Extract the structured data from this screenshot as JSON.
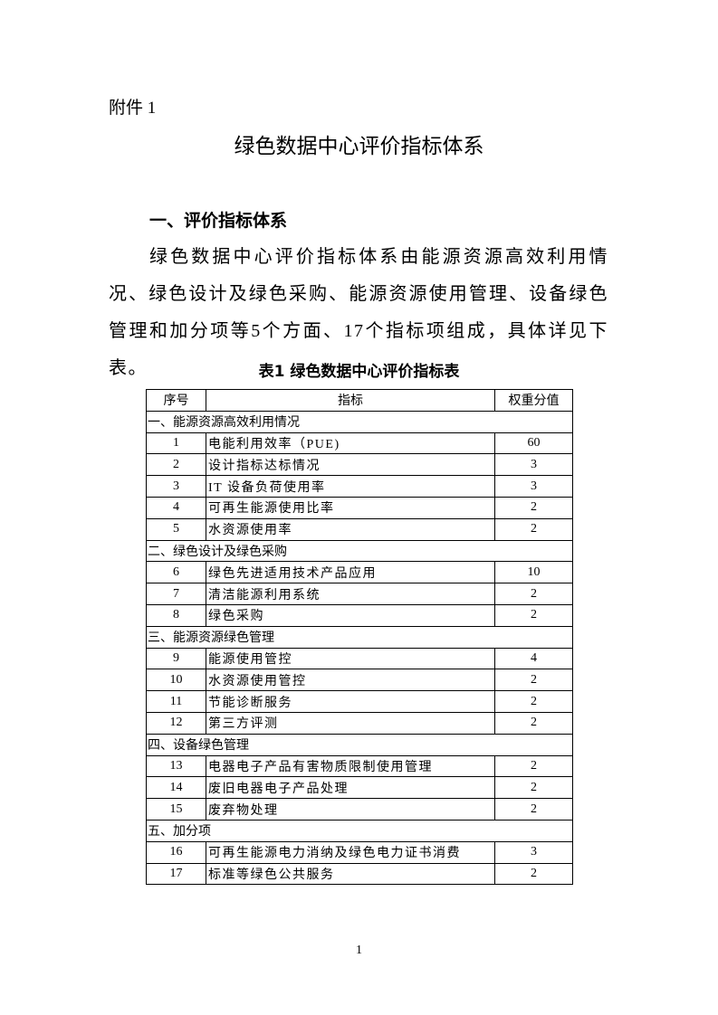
{
  "attachment_label": "附件 1",
  "title": "绿色数据中心评价指标体系",
  "section_heading": "一、评价指标体系",
  "paragraph": "绿色数据中心评价指标体系由能源资源高效利用情况、绿色设计及绿色采购、能源资源使用管理、设备绿色管理和加分项等5个方面、17个指标项组成，具体详见下表。",
  "table_caption": "表1  绿色数据中心评价指标表",
  "table": {
    "headers": [
      "序号",
      "指标",
      "权重分值"
    ],
    "sections": [
      {
        "name": "一、能源资源高效利用情况",
        "rows": [
          {
            "no": "1",
            "item": "电能利用效率（PUE)",
            "weight": "60"
          },
          {
            "no": "2",
            "item": "设计指标达标情况",
            "weight": "3"
          },
          {
            "no": "3",
            "item": "IT 设备负荷使用率",
            "weight": "3"
          },
          {
            "no": "4",
            "item": "可再生能源使用比率",
            "weight": "2"
          },
          {
            "no": "5",
            "item": "水资源使用率",
            "weight": "2"
          }
        ]
      },
      {
        "name": "二、绿色设计及绿色采购",
        "rows": [
          {
            "no": "6",
            "item": "绿色先进适用技术产品应用",
            "weight": "10"
          },
          {
            "no": "7",
            "item": "清洁能源利用系统",
            "weight": "2"
          },
          {
            "no": "8",
            "item": "绿色采购",
            "weight": "2"
          }
        ]
      },
      {
        "name": "三、能源资源绿色管理",
        "rows": [
          {
            "no": "9",
            "item": "能源使用管控",
            "weight": "4"
          },
          {
            "no": "10",
            "item": "水资源使用管控",
            "weight": "2"
          },
          {
            "no": "11",
            "item": "节能诊断服务",
            "weight": "2"
          },
          {
            "no": "12",
            "item": "第三方评测",
            "weight": "2"
          }
        ]
      },
      {
        "name": "四、设备绿色管理",
        "rows": [
          {
            "no": "13",
            "item": "电器电子产品有害物质限制使用管理",
            "weight": "2"
          },
          {
            "no": "14",
            "item": "废旧电器电子产品处理",
            "weight": "2"
          },
          {
            "no": "15",
            "item": "废弃物处理",
            "weight": "2"
          }
        ]
      },
      {
        "name": "五、加分项",
        "rows": [
          {
            "no": "16",
            "item": "可再生能源电力消纳及绿色电力证书消费",
            "weight": "3"
          },
          {
            "no": "17",
            "item": "标准等绿色公共服务",
            "weight": "2"
          }
        ]
      }
    ]
  },
  "page_number": "1"
}
